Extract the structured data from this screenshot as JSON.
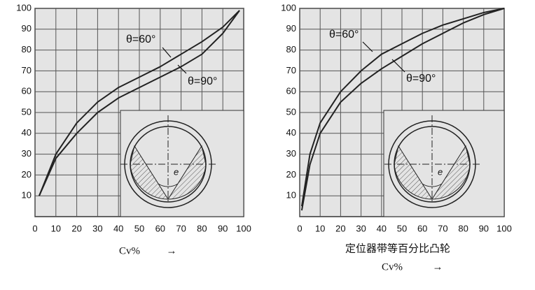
{
  "chart_data": [
    {
      "type": "line",
      "xlim": [
        0,
        100
      ],
      "ylim": [
        0,
        100
      ],
      "xticks": [
        0,
        10,
        20,
        30,
        40,
        50,
        60,
        70,
        80,
        90,
        100
      ],
      "yticks": [
        10,
        20,
        30,
        40,
        50,
        60,
        70,
        80,
        90,
        100
      ],
      "x": [
        2,
        10,
        20,
        30,
        40,
        50,
        60,
        70,
        80,
        90,
        98
      ],
      "series": [
        {
          "name": "θ=60°",
          "color": "#222222",
          "values": [
            10,
            30,
            45,
            55,
            62,
            67,
            72,
            78,
            84,
            91,
            99
          ]
        },
        {
          "name": "θ=90°",
          "color": "#222222",
          "values": [
            10,
            28,
            40,
            50,
            57,
            62,
            67,
            72,
            78,
            88,
            99
          ]
        }
      ],
      "grid": true,
      "inset_label": "e",
      "xlabel": "Cv%",
      "xlabel_arrow": "→"
    },
    {
      "type": "line",
      "xlim": [
        0,
        100
      ],
      "ylim": [
        0,
        100
      ],
      "xticks": [
        0,
        10,
        20,
        30,
        40,
        50,
        60,
        70,
        80,
        90,
        100
      ],
      "yticks": [
        10,
        20,
        30,
        40,
        50,
        60,
        70,
        80,
        90,
        100
      ],
      "x": [
        1,
        5,
        10,
        20,
        30,
        40,
        50,
        60,
        70,
        80,
        90,
        100
      ],
      "series": [
        {
          "name": "θ=60°",
          "color": "#222222",
          "values": [
            5,
            30,
            45,
            60,
            70,
            78,
            83,
            88,
            92,
            95,
            98,
            100
          ]
        },
        {
          "name": "θ=90°",
          "color": "#222222",
          "values": [
            3,
            25,
            40,
            55,
            64,
            71,
            77,
            83,
            88,
            93,
            97,
            100
          ]
        }
      ],
      "grid": true,
      "inset_label": "e",
      "subtitle": "定位器带等百分比凸轮",
      "xlabel": "Cv%",
      "xlabel_arrow": "→"
    }
  ]
}
